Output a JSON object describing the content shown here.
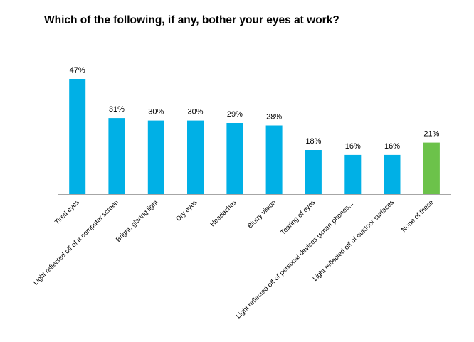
{
  "chart_data": {
    "type": "bar",
    "title": "Which of the following, if any, bother your eyes at work?",
    "categories": [
      "Tired eyes",
      "Light reflected off of a computer screen",
      "Bright, glaring light",
      "Dry eyes",
      "Headaches",
      "Blurry vision",
      "Tearing of eyes",
      "Light reflected off of personal devices (smart phones,...",
      "Light reflected off of outdoor surfaces",
      "None of these"
    ],
    "values": [
      47,
      31,
      30,
      30,
      29,
      28,
      18,
      16,
      16,
      21
    ],
    "value_labels": [
      "47%",
      "31%",
      "30%",
      "30%",
      "29%",
      "28%",
      "18%",
      "16%",
      "16%",
      "21%"
    ],
    "ylim": [
      0,
      50
    ],
    "xlabel": "",
    "ylabel": "",
    "grid": false,
    "colors": {
      "default": "#00B0E6",
      "highlight": "#6CC24A",
      "axis": "#A6A6A6"
    },
    "highlight_index": 9
  }
}
